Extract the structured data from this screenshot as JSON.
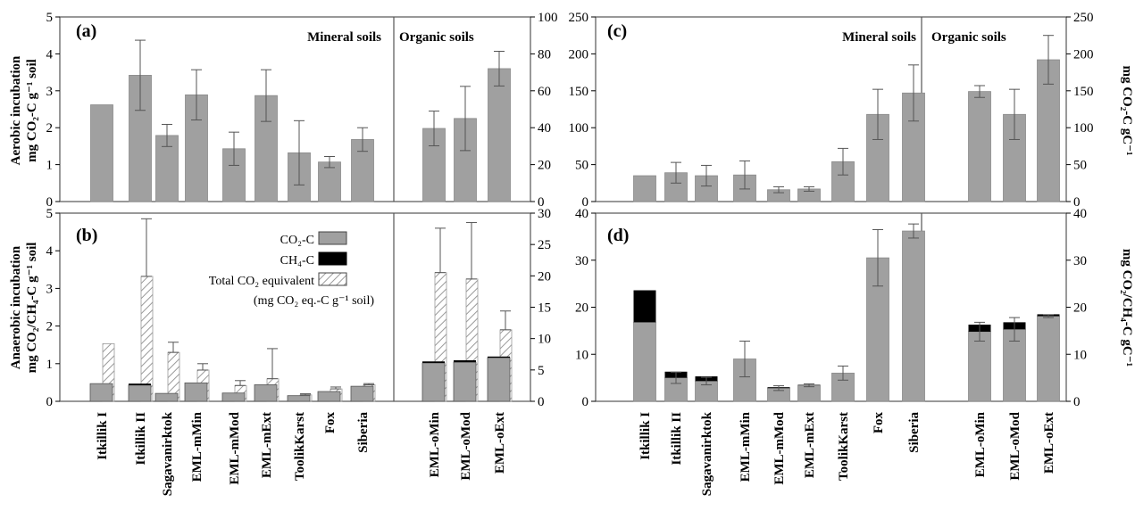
{
  "colors": {
    "gray": "#a0a0a0",
    "ch4": "#000000",
    "hatch_line": "#9a9a9a",
    "frame": "#555555"
  },
  "categories_left": [
    "Itkillik I",
    "Itkillik II",
    "Sagavanirktok",
    "EML-mMin",
    "EML-mMod",
    "EML-mExt",
    "ToolikKarst",
    "Fox",
    "Siberia",
    "EML-oMin",
    "EML-oMod",
    "EML-oExt"
  ],
  "categories_right": [
    "Itkillik I",
    "Itkillik II",
    "Sagavanirktok",
    "EML-mMin",
    "EML-mMod",
    "EML-mExt",
    "ToolikKarst",
    "Fox",
    "Siberia",
    "EML-oMin",
    "EML-oMod",
    "EML-oExt"
  ],
  "region_mineral": "Mineral soils",
  "region_organic": "Organic soils",
  "chart_data": [
    {
      "panel": "(a)",
      "type": "bar",
      "ylabel_lines": [
        "Aerobic incubation",
        "mg CO₂-C g⁻¹ soil"
      ],
      "ylim": [
        0,
        5
      ],
      "yticks": [
        0,
        1,
        2,
        3,
        4,
        5
      ],
      "y2lim": [
        0,
        100
      ],
      "y2ticks": [
        0,
        20,
        40,
        60,
        80,
        100
      ],
      "values": [
        2.62,
        3.42,
        1.79,
        2.89,
        1.43,
        2.87,
        1.32,
        1.07,
        1.68,
        1.98,
        2.25,
        3.6
      ],
      "err": [
        0,
        0.95,
        0.3,
        0.68,
        0.45,
        0.7,
        0.87,
        0.15,
        0.32,
        0.47,
        0.87,
        0.47
      ]
    },
    {
      "panel": "(b)",
      "type": "bar",
      "ylabel_lines": [
        "Anaerobic incubation",
        "mg CO₂/CH₄-C g⁻¹ soil"
      ],
      "ylim": [
        0,
        5
      ],
      "yticks": [
        0,
        1,
        2,
        3,
        4,
        5
      ],
      "y2lim": [
        0,
        30
      ],
      "y2ticks": [
        0,
        5,
        10,
        15,
        20,
        25,
        30
      ],
      "legend": {
        "co2": "CO₂-C",
        "ch4": "CH₄-C",
        "total": "Total CO₂ equivalent",
        "total_sub": "(mg CO₂ eq.-C g⁻¹ soil)"
      },
      "series": [
        {
          "name": "CO₂-C",
          "values": [
            0.47,
            0.43,
            0.21,
            0.49,
            0.22,
            0.44,
            0.15,
            0.26,
            0.4,
            1.02,
            1.04,
            1.16
          ]
        },
        {
          "name": "CH₄-C",
          "values": [
            0,
            0.04,
            0,
            0,
            0,
            0,
            0,
            0,
            0,
            0.04,
            0.05,
            0.03
          ]
        },
        {
          "name": "Total CO₂ equivalent",
          "values": [
            1.53,
            3.32,
            1.3,
            0.83,
            0.42,
            0.6,
            0.17,
            0.33,
            0.44,
            3.42,
            3.25,
            1.9
          ],
          "err": [
            0,
            1.53,
            0.27,
            0.17,
            0.13,
            0.8,
            0.03,
            0.05,
            0.03,
            1.18,
            1.5,
            0.5
          ]
        }
      ]
    },
    {
      "panel": "(c)",
      "type": "bar",
      "ylabel_lines": [
        "mg CO₂-C gC⁻¹"
      ],
      "ylim": [
        0,
        250
      ],
      "yticks": [
        0,
        50,
        100,
        150,
        200,
        250
      ],
      "y2lim": [
        0,
        250
      ],
      "y2ticks": [
        0,
        50,
        100,
        150,
        200,
        250
      ],
      "values": [
        35,
        39,
        35,
        36,
        16,
        17,
        54,
        118,
        147,
        149,
        118,
        192
      ],
      "err": [
        0,
        14,
        14,
        19,
        4,
        3,
        18,
        34,
        38,
        8,
        34,
        33
      ]
    },
    {
      "panel": "(d)",
      "type": "bar",
      "ylabel_lines": [
        "mg CO₂/CH₄-C gC⁻¹"
      ],
      "ylim": [
        0,
        40
      ],
      "yticks": [
        0,
        10,
        20,
        30,
        40
      ],
      "y2lim": [
        0,
        40
      ],
      "y2ticks": [
        0,
        10,
        20,
        30,
        40
      ],
      "series": [
        {
          "name": "CO₂-C",
          "values": [
            16.8,
            5,
            4.3,
            9,
            2.8,
            3.4,
            6,
            30.5,
            36.2,
            14.8,
            15.3,
            18.1
          ]
        },
        {
          "name": "CH₄-C",
          "values": [
            6.8,
            1.3,
            1,
            0,
            0.2,
            0.1,
            0,
            0,
            0,
            1.5,
            1.5,
            0.4
          ]
        }
      ],
      "err": [
        0,
        1.2,
        0.8,
        3.8,
        0.5,
        0.3,
        1.5,
        6,
        1.5,
        2,
        2.5,
        0.3
      ]
    }
  ]
}
